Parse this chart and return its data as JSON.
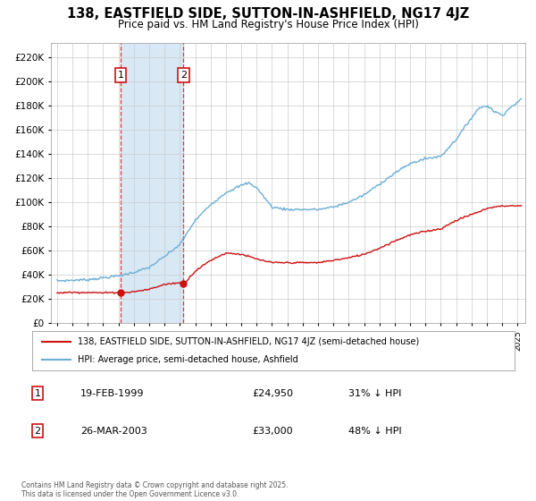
{
  "title": "138, EASTFIELD SIDE, SUTTON-IN-ASHFIELD, NG17 4JZ",
  "subtitle": "Price paid vs. HM Land Registry's House Price Index (HPI)",
  "yticks": [
    0,
    20000,
    40000,
    60000,
    80000,
    100000,
    120000,
    140000,
    160000,
    180000,
    200000,
    220000
  ],
  "ylim": [
    0,
    232000
  ],
  "sale1_t": 1999.13,
  "sale1_price": 24950,
  "sale2_t": 2003.23,
  "sale2_price": 33000,
  "hpi_color": "#6aaed6",
  "price_color": "#cc1111",
  "shading_color": "#d8e8f5",
  "grid_color": "#cccccc",
  "legend_house": "138, EASTFIELD SIDE, SUTTON-IN-ASHFIELD, NG17 4JZ (semi-detached house)",
  "legend_hpi": "HPI: Average price, semi-detached house, Ashfield",
  "footnote": "Contains HM Land Registry data © Crown copyright and database right 2025.\nThis data is licensed under the Open Government Licence v3.0.",
  "table": [
    {
      "num": "1",
      "date": "19-FEB-1999",
      "price": "£24,950",
      "hpi": "31% ↓ HPI"
    },
    {
      "num": "2",
      "date": "26-MAR-2003",
      "price": "£33,000",
      "hpi": "48% ↓ HPI"
    }
  ],
  "hpi_anchors_t": [
    1995.0,
    1996.0,
    1997.0,
    1998.0,
    1999.0,
    2000.0,
    2001.0,
    2002.0,
    2003.0,
    2003.5,
    2004.0,
    2005.0,
    2006.0,
    2007.0,
    2007.5,
    2008.0,
    2009.0,
    2010.0,
    2011.0,
    2012.0,
    2013.0,
    2014.0,
    2015.0,
    2016.0,
    2017.0,
    2018.0,
    2019.0,
    2020.0,
    2021.0,
    2022.0,
    2022.5,
    2023.0,
    2023.5,
    2024.0,
    2024.5,
    2025.25
  ],
  "hpi_anchors_v": [
    35000,
    35500,
    36000,
    37500,
    39000,
    42000,
    46000,
    55000,
    65000,
    75000,
    85000,
    98000,
    108000,
    114000,
    116000,
    112000,
    96000,
    94000,
    94000,
    94000,
    96000,
    100000,
    106000,
    115000,
    124000,
    132000,
    136000,
    138000,
    152000,
    170000,
    178000,
    180000,
    175000,
    172000,
    178000,
    185000
  ],
  "price_anchors_t": [
    1995.0,
    1996.0,
    1997.0,
    1998.0,
    1999.0,
    1999.13,
    2000.0,
    2001.0,
    2002.0,
    2003.0,
    2003.23,
    2003.5,
    2004.0,
    2005.0,
    2006.0,
    2007.0,
    2007.5,
    2008.0,
    2009.0,
    2010.0,
    2011.0,
    2012.0,
    2013.0,
    2014.0,
    2015.0,
    2016.0,
    2017.0,
    2018.0,
    2019.0,
    2020.0,
    2021.0,
    2022.0,
    2022.5,
    2023.0,
    2024.0,
    2025.25
  ],
  "price_anchors_v": [
    25000,
    25500,
    25500,
    25000,
    25500,
    24950,
    26000,
    28000,
    32000,
    33500,
    33000,
    36000,
    43000,
    52000,
    58000,
    57000,
    55000,
    53000,
    50000,
    50000,
    50000,
    50000,
    52000,
    54000,
    57000,
    62000,
    68000,
    73000,
    76000,
    78000,
    85000,
    90000,
    92000,
    95000,
    97000,
    97000
  ]
}
